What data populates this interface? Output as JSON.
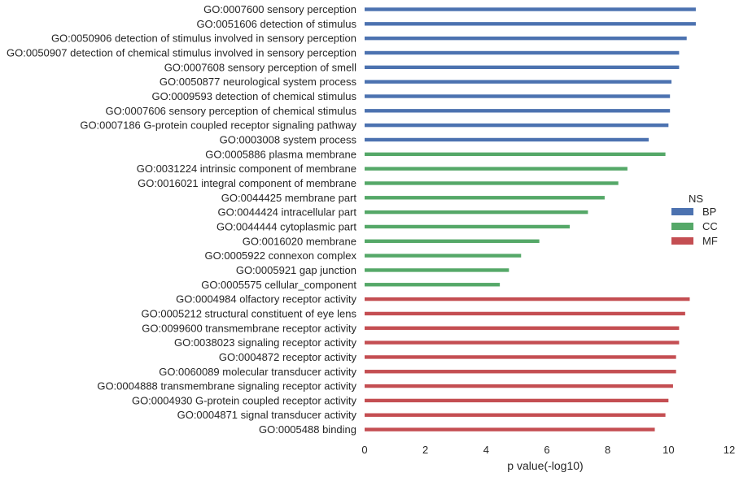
{
  "chart_data": {
    "type": "bar",
    "orientation": "horizontal",
    "categories": [
      "GO:0007600 sensory perception",
      "GO:0051606 detection of stimulus",
      "GO:0050906 detection of stimulus involved in sensory perception",
      "GO:0050907 detection of chemical stimulus involved in sensory perception",
      "GO:0007608 sensory perception of smell",
      "GO:0050877 neurological system process",
      "GO:0009593 detection of chemical stimulus",
      "GO:0007606 sensory perception of chemical stimulus",
      "GO:0007186 G-protein coupled receptor signaling pathway",
      "GO:0003008 system process",
      "GO:0005886 plasma membrane",
      "GO:0031224 intrinsic component of membrane",
      "GO:0016021 integral component of membrane",
      "GO:0044425 membrane part",
      "GO:0044424 intracellular part",
      "GO:0044444 cytoplasmic part",
      "GO:0016020 membrane",
      "GO:0005922 connexon complex",
      "GO:0005921 gap junction",
      "GO:0005575 cellular_component",
      "GO:0004984 olfactory receptor activity",
      "GO:0005212 structural constituent of eye lens",
      "GO:0099600 transmembrane receptor activity",
      "GO:0038023 signaling receptor activity",
      "GO:0004872 receptor activity",
      "GO:0060089 molecular transducer activity",
      "GO:0004888 transmembrane signaling receptor activity",
      "GO:0004930 G-protein coupled receptor activity",
      "GO:0004871 signal transducer activity",
      "GO:0005488 binding"
    ],
    "values": [
      10.9,
      10.9,
      10.6,
      10.35,
      10.35,
      10.1,
      10.05,
      10.05,
      10.0,
      9.35,
      9.9,
      8.65,
      8.35,
      7.9,
      7.35,
      6.75,
      5.75,
      5.15,
      4.75,
      4.45,
      10.7,
      10.55,
      10.35,
      10.35,
      10.25,
      10.25,
      10.15,
      10.0,
      9.9,
      9.55
    ],
    "groups": [
      "BP",
      "BP",
      "BP",
      "BP",
      "BP",
      "BP",
      "BP",
      "BP",
      "BP",
      "BP",
      "CC",
      "CC",
      "CC",
      "CC",
      "CC",
      "CC",
      "CC",
      "CC",
      "CC",
      "CC",
      "MF",
      "MF",
      "MF",
      "MF",
      "MF",
      "MF",
      "MF",
      "MF",
      "MF",
      "MF"
    ],
    "xlabel": "p value(-log10)",
    "ylabel": "",
    "xlim": [
      0,
      12
    ],
    "xticks": [
      0,
      2,
      4,
      6,
      8,
      10,
      12
    ],
    "grid": false,
    "legend": {
      "title": "NS",
      "placement": "right",
      "entries": [
        {
          "name": "BP",
          "color": "#4c72b0"
        },
        {
          "name": "CC",
          "color": "#55a868"
        },
        {
          "name": "MF",
          "color": "#c44e52"
        }
      ]
    }
  }
}
